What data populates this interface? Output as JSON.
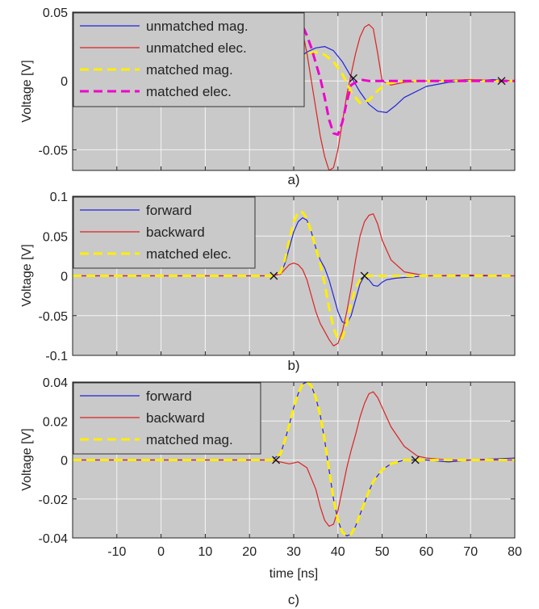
{
  "chart_data": [
    {
      "type": "line",
      "panel_label": "a)",
      "ylabel": "Voltage [V]",
      "xlabel": "",
      "xlim": [
        -20,
        80
      ],
      "ylim": [
        -0.065,
        0.05
      ],
      "yticks": [
        0.05,
        0,
        -0.05
      ],
      "ytick_labels": [
        "0.05",
        "0",
        "-0.05"
      ],
      "xticks": [
        -10,
        0,
        10,
        20,
        30,
        40,
        50,
        60,
        70,
        80
      ],
      "xtick_labels": [],
      "grid": true,
      "legend_position": "top-left",
      "series": [
        {
          "name": "unmatched mag.",
          "color": "#2222dd",
          "dash": "solid",
          "width": 1.2,
          "x": [
            -20,
            25,
            27,
            29,
            31,
            33,
            35,
            37,
            39,
            41,
            43,
            45,
            47,
            49,
            51,
            53,
            55,
            60,
            65,
            70,
            75,
            80
          ],
          "y": [
            0,
            0,
            0.002,
            0.008,
            0.016,
            0.021,
            0.024,
            0.025,
            0.022,
            0.014,
            0.003,
            -0.008,
            -0.017,
            -0.022,
            -0.023,
            -0.018,
            -0.012,
            -0.004,
            -0.001,
            0,
            0.001,
            0
          ]
        },
        {
          "name": "unmatched elec.",
          "color": "#dd2222",
          "dash": "solid",
          "width": 1.2,
          "x": [
            -20,
            25,
            27,
            28,
            29,
            30,
            31,
            32,
            33,
            34,
            35,
            36,
            37,
            38,
            39,
            40,
            41,
            42,
            43,
            44,
            45,
            46,
            47,
            48,
            49,
            50,
            52,
            55,
            60,
            70,
            80
          ],
          "y": [
            0,
            0,
            0.001,
            0.015,
            0.032,
            0.042,
            0.043,
            0.036,
            0.02,
            0.0,
            -0.02,
            -0.04,
            -0.055,
            -0.065,
            -0.063,
            -0.05,
            -0.03,
            -0.01,
            0.005,
            0.02,
            0.032,
            0.039,
            0.041,
            0.038,
            0.02,
            0.0,
            -0.003,
            -0.001,
            0,
            0.001,
            0
          ]
        },
        {
          "name": "matched mag.",
          "color": "#ffee00",
          "dash": "dashed",
          "width": 3,
          "x": [
            -20,
            25,
            27,
            29,
            31,
            33,
            35,
            37,
            39,
            41,
            43,
            45,
            47,
            49,
            51,
            55,
            60,
            70,
            80
          ],
          "y": [
            0,
            0,
            0.002,
            0.008,
            0.015,
            0.02,
            0.021,
            0.019,
            0.014,
            0.005,
            -0.008,
            -0.016,
            -0.014,
            -0.007,
            -0.002,
            0,
            0,
            0,
            0
          ]
        },
        {
          "name": "matched elec.",
          "color": "#ee00cc",
          "dash": "dashed",
          "width": 3,
          "x": [
            -20,
            25,
            27,
            28,
            29,
            30,
            31,
            32,
            33,
            34,
            35,
            36,
            37,
            38,
            39,
            40,
            41,
            42,
            43,
            45,
            47,
            50,
            55,
            60,
            70,
            80
          ],
          "y": [
            0,
            0,
            0.002,
            0.015,
            0.03,
            0.04,
            0.042,
            0.04,
            0.033,
            0.024,
            0.013,
            0.002,
            -0.012,
            -0.028,
            -0.038,
            -0.039,
            -0.03,
            -0.015,
            -0.003,
            0.001,
            0,
            0,
            0,
            0,
            0,
            0
          ]
        }
      ],
      "markers": [
        [
          26.5,
          0
        ],
        [
          27,
          0
        ],
        [
          43.5,
          0.002
        ],
        [
          77,
          0
        ]
      ]
    },
    {
      "type": "line",
      "panel_label": "b)",
      "ylabel": "Voltage [V]",
      "xlabel": "",
      "xlim": [
        -20,
        80
      ],
      "ylim": [
        -0.1,
        0.1
      ],
      "yticks": [
        0.1,
        0.05,
        0,
        -0.05,
        -0.1
      ],
      "ytick_labels": [
        "0.1",
        "0.05",
        "0",
        "-0.05",
        "-0.1"
      ],
      "xticks": [
        -10,
        0,
        10,
        20,
        30,
        40,
        50,
        60,
        70,
        80
      ],
      "xtick_labels": [],
      "grid": true,
      "legend_position": "top-left",
      "series": [
        {
          "name": "forward",
          "color": "#2222dd",
          "dash": "solid",
          "width": 1.2,
          "x": [
            -20,
            25,
            27,
            28,
            29,
            30,
            31,
            32,
            33,
            34,
            35,
            36,
            37,
            38,
            39,
            40,
            41,
            42,
            43,
            44,
            45,
            46,
            47,
            48,
            49,
            50,
            51,
            53,
            55,
            60,
            70,
            80
          ],
          "y": [
            0,
            0,
            0.002,
            0.015,
            0.035,
            0.055,
            0.068,
            0.073,
            0.07,
            0.055,
            0.035,
            0.02,
            0.01,
            -0.005,
            -0.025,
            -0.045,
            -0.058,
            -0.06,
            -0.05,
            -0.03,
            -0.01,
            0.0,
            -0.005,
            -0.012,
            -0.013,
            -0.008,
            -0.005,
            -0.003,
            -0.002,
            0,
            0,
            0
          ]
        },
        {
          "name": "backward",
          "color": "#dd2222",
          "dash": "solid",
          "width": 1.2,
          "x": [
            -20,
            25,
            27,
            28,
            29,
            30,
            31,
            32,
            33,
            34,
            35,
            36,
            37,
            38,
            39,
            40,
            41,
            42,
            43,
            44,
            45,
            46,
            47,
            48,
            49,
            50,
            52,
            55,
            60,
            70,
            80
          ],
          "y": [
            0,
            0,
            0.002,
            0.008,
            0.014,
            0.016,
            0.014,
            0.008,
            -0.005,
            -0.025,
            -0.045,
            -0.06,
            -0.07,
            -0.08,
            -0.088,
            -0.085,
            -0.07,
            -0.045,
            -0.015,
            0.02,
            0.05,
            0.068,
            0.076,
            0.078,
            0.065,
            0.045,
            0.02,
            0.005,
            0.0,
            0.001,
            0
          ]
        },
        {
          "name": "matched elec.",
          "color": "#ffee00",
          "dash": "dashed",
          "width": 3,
          "x": [
            -20,
            25,
            27,
            28,
            29,
            30,
            31,
            32,
            33,
            34,
            35,
            36,
            37,
            38,
            39,
            40,
            41,
            42,
            43,
            44,
            45,
            46,
            48,
            50,
            55,
            60,
            70,
            80
          ],
          "y": [
            0,
            0,
            0.004,
            0.02,
            0.045,
            0.068,
            0.08,
            0.08,
            0.072,
            0.055,
            0.035,
            0.015,
            -0.01,
            -0.04,
            -0.065,
            -0.08,
            -0.078,
            -0.06,
            -0.035,
            -0.015,
            -0.005,
            0,
            0,
            0,
            0,
            0,
            0,
            0
          ]
        }
      ],
      "markers": [
        [
          25.5,
          0
        ],
        [
          46,
          0
        ]
      ]
    },
    {
      "type": "line",
      "panel_label": "c)",
      "ylabel": "Voltage [V]",
      "xlabel": "time [ns]",
      "xlim": [
        -20,
        80
      ],
      "ylim": [
        -0.04,
        0.04
      ],
      "yticks": [
        0.04,
        0.02,
        0,
        -0.02,
        -0.04
      ],
      "ytick_labels": [
        "0.04",
        "0.02",
        "0",
        "-0.02",
        "-0.04"
      ],
      "xticks": [
        -10,
        0,
        10,
        20,
        30,
        40,
        50,
        60,
        70,
        80
      ],
      "xtick_labels": [
        "-10",
        "0",
        "10",
        "20",
        "30",
        "40",
        "50",
        "60",
        "70",
        "80"
      ],
      "grid": true,
      "legend_position": "top-left",
      "series": [
        {
          "name": "forward",
          "color": "#2222dd",
          "dash": "solid",
          "width": 1.2,
          "x": [
            -20,
            25,
            27,
            28,
            29,
            30,
            31,
            32,
            33,
            34,
            35,
            36,
            37,
            38,
            39,
            40,
            41,
            42,
            43,
            44,
            45,
            46,
            47,
            48,
            50,
            52,
            55,
            60,
            65,
            70,
            80
          ],
          "y": [
            0,
            0,
            0.003,
            0.01,
            0.018,
            0.027,
            0.034,
            0.039,
            0.04,
            0.038,
            0.032,
            0.023,
            0.01,
            -0.005,
            -0.02,
            -0.031,
            -0.037,
            -0.039,
            -0.038,
            -0.034,
            -0.028,
            -0.022,
            -0.016,
            -0.011,
            -0.005,
            -0.002,
            0,
            0,
            -0.001,
            0,
            0.001
          ]
        },
        {
          "name": "backward",
          "color": "#dd2222",
          "dash": "solid",
          "width": 1.2,
          "x": [
            -20,
            25,
            27,
            29,
            31,
            33,
            35,
            36,
            37,
            38,
            39,
            40,
            41,
            42,
            43,
            44,
            45,
            46,
            47,
            48,
            49,
            50,
            52,
            55,
            58,
            60,
            65,
            70,
            80
          ],
          "y": [
            0,
            0,
            -0.001,
            -0.002,
            -0.001,
            -0.004,
            -0.015,
            -0.024,
            -0.031,
            -0.034,
            -0.033,
            -0.026,
            -0.015,
            -0.004,
            0.005,
            0.013,
            0.022,
            0.029,
            0.034,
            0.035,
            0.032,
            0.027,
            0.017,
            0.007,
            0.002,
            0.001,
            0,
            0,
            0
          ]
        },
        {
          "name": "matched mag.",
          "color": "#ffee00",
          "dash": "dashed",
          "width": 3,
          "x": [
            -20,
            25,
            27,
            28,
            29,
            30,
            31,
            32,
            33,
            34,
            35,
            36,
            37,
            38,
            39,
            40,
            41,
            42,
            43,
            44,
            45,
            46,
            47,
            48,
            50,
            52,
            55,
            60,
            65,
            70,
            80
          ],
          "y": [
            0,
            0,
            0.003,
            0.01,
            0.018,
            0.027,
            0.034,
            0.039,
            0.04,
            0.038,
            0.032,
            0.023,
            0.01,
            -0.005,
            -0.02,
            -0.031,
            -0.037,
            -0.039,
            -0.038,
            -0.034,
            -0.028,
            -0.022,
            -0.016,
            -0.011,
            -0.005,
            -0.002,
            0,
            0,
            0,
            0,
            0
          ]
        }
      ],
      "markers": [
        [
          26,
          0
        ],
        [
          57.5,
          0
        ]
      ]
    }
  ]
}
